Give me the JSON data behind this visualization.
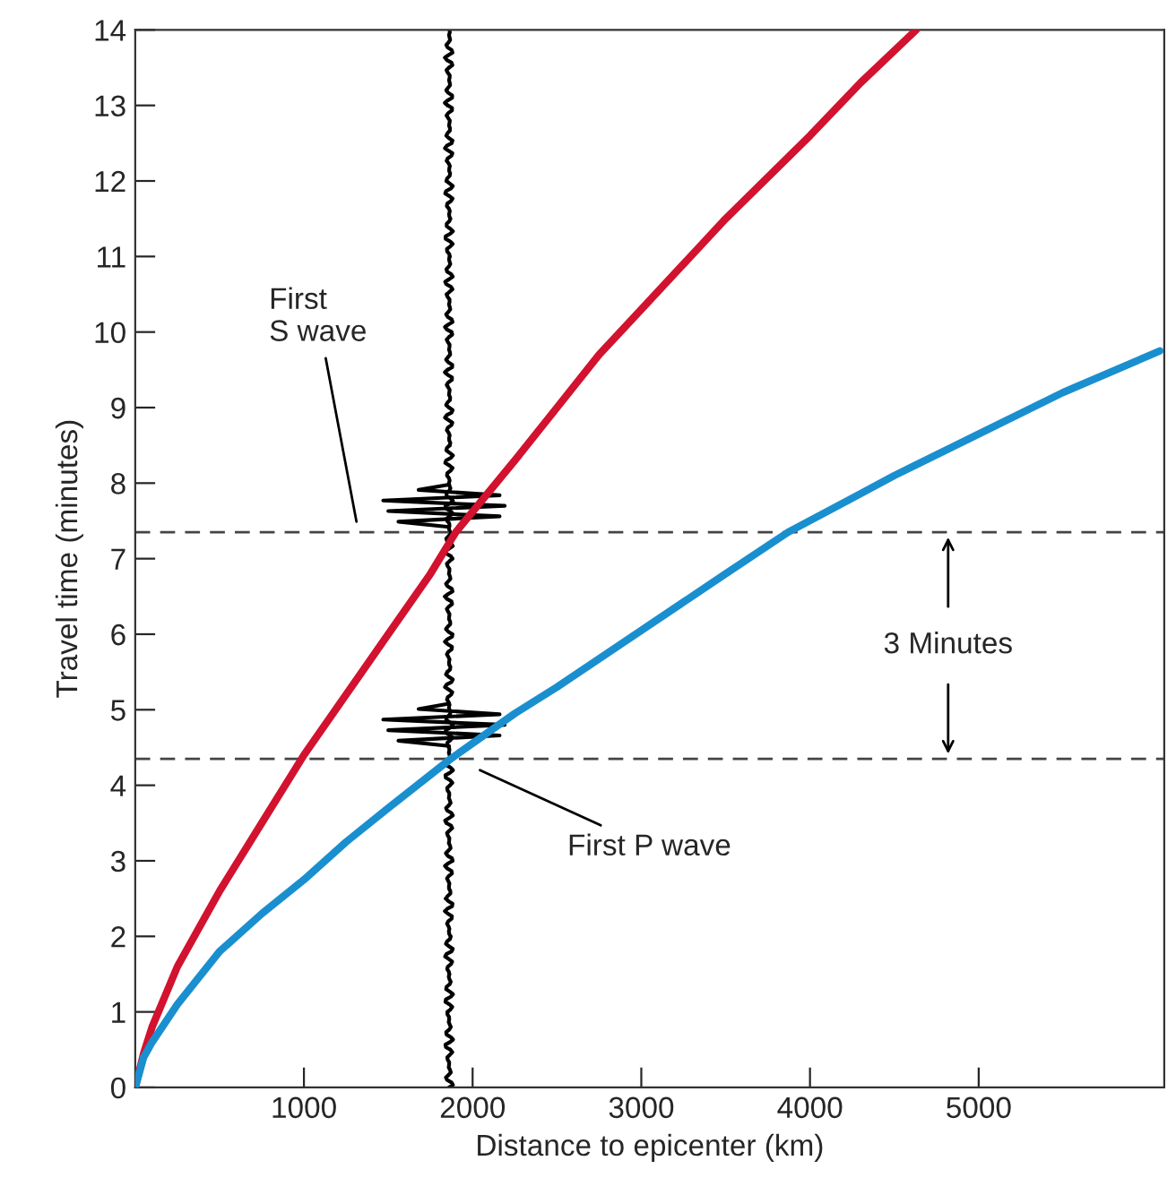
{
  "chart_data": {
    "type": "line",
    "xlabel": "Distance to epicenter (km)",
    "ylabel": "Travel time (minutes)",
    "xlim": [
      0,
      6100
    ],
    "ylim": [
      0,
      14
    ],
    "xticks": [
      1000,
      2000,
      3000,
      4000,
      5000
    ],
    "yticks": [
      0,
      1,
      2,
      3,
      4,
      5,
      6,
      7,
      8,
      9,
      10,
      11,
      12,
      13,
      14
    ],
    "grid": false,
    "legend": false,
    "marker": "none",
    "line_style": "solid",
    "series": [
      {
        "color": "#d2122e",
        "x": [
          0,
          50,
          100,
          250,
          500,
          750,
          1000,
          1250,
          1500,
          1750,
          1900,
          2250,
          2500,
          2750,
          3000,
          3500,
          4000,
          4300,
          4630
        ],
        "values": [
          0,
          0.45,
          0.8,
          1.6,
          2.6,
          3.5,
          4.4,
          5.2,
          6.0,
          6.8,
          7.35,
          8.3,
          9.0,
          9.7,
          10.3,
          11.5,
          12.6,
          13.3,
          14
        ]
      },
      {
        "color": "#1a8fcf",
        "x": [
          0,
          50,
          100,
          250,
          500,
          750,
          1000,
          1250,
          1500,
          1870,
          2250,
          2500,
          3000,
          3500,
          3870,
          4250,
          4500,
          5000,
          5500,
          6074
        ],
        "values": [
          0,
          0.4,
          0.6,
          1.1,
          1.8,
          2.3,
          2.75,
          3.25,
          3.7,
          4.35,
          4.95,
          5.3,
          6.05,
          6.8,
          7.35,
          7.8,
          8.1,
          8.65,
          9.2,
          9.75
        ]
      }
    ],
    "ref_lines": [
      {
        "axis": "y",
        "value": 7.35,
        "color": "#444444",
        "line_style": "dashed"
      },
      {
        "axis": "y",
        "value": 4.35,
        "color": "#444444",
        "line_style": "dashed"
      }
    ],
    "annotations": [
      "First\nS wave",
      "First P wave",
      "3 Minutes"
    ]
  }
}
